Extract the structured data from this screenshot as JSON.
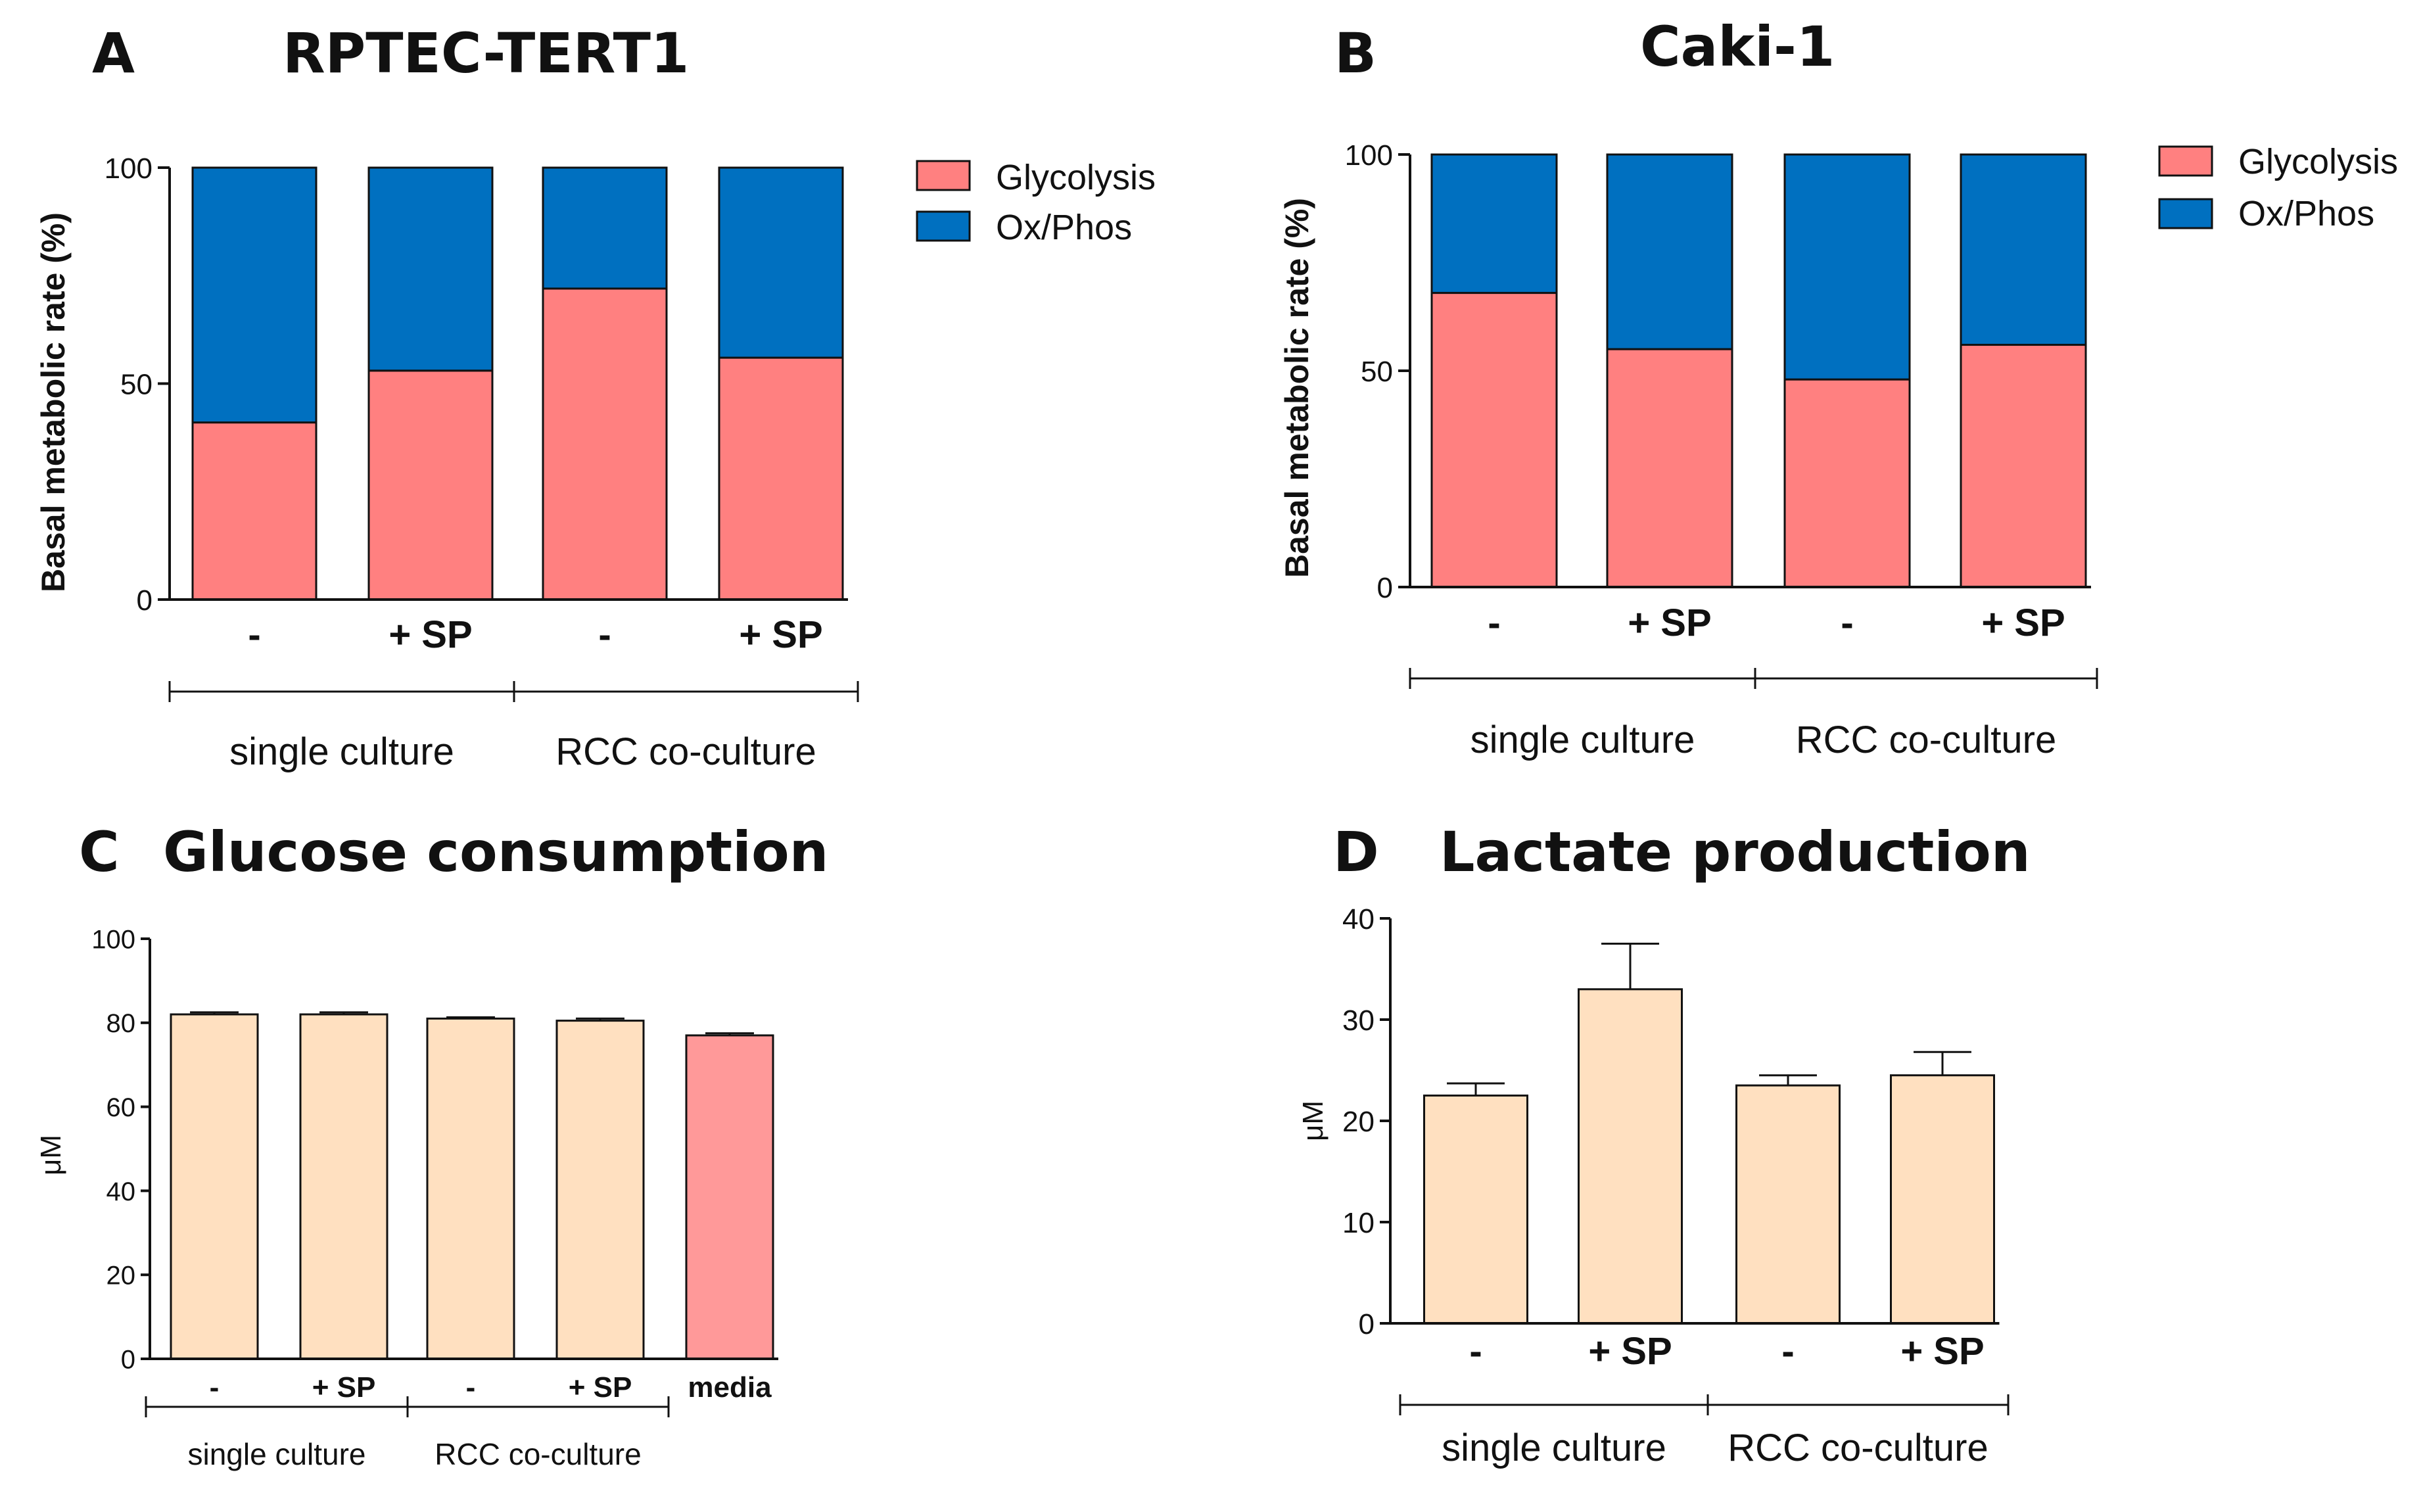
{
  "colors": {
    "glycolysis": "#FF8080",
    "oxphos": "#0070C0",
    "beige": "#FFE0C0",
    "media": "#FF9999",
    "axis": "#111111"
  },
  "chart_data": [
    {
      "panel": "A",
      "title": "RPTEC-TERT1",
      "type": "bar",
      "stacked": true,
      "categories": [
        "-",
        "+ SP",
        "-",
        "+ SP"
      ],
      "groups": [
        {
          "label": "single culture",
          "categories": [
            0,
            1
          ]
        },
        {
          "label": "RCC co-culture",
          "categories": [
            2,
            3
          ]
        }
      ],
      "series": [
        {
          "name": "Glycolysis",
          "color": "#FF8080",
          "values": [
            41,
            53,
            72,
            56
          ]
        },
        {
          "name": "Ox/Phos",
          "color": "#0070C0",
          "values": [
            59,
            47,
            28,
            44
          ]
        }
      ],
      "ylabel": "Basal metabolic rate (%)",
      "ylim": [
        0,
        100
      ],
      "yticks": [
        0,
        50,
        100
      ],
      "legend": "top-right"
    },
    {
      "panel": "B",
      "title": "Caki-1",
      "type": "bar",
      "stacked": true,
      "categories": [
        "-",
        "+ SP",
        "-",
        "+ SP"
      ],
      "groups": [
        {
          "label": "single culture",
          "categories": [
            0,
            1
          ]
        },
        {
          "label": "RCC co-culture",
          "categories": [
            2,
            3
          ]
        }
      ],
      "series": [
        {
          "name": "Glycolysis",
          "color": "#FF8080",
          "values": [
            68,
            55,
            48,
            56
          ]
        },
        {
          "name": "Ox/Phos",
          "color": "#0070C0",
          "values": [
            32,
            45,
            52,
            44
          ]
        }
      ],
      "ylabel": "Basal metabolic rate (%)",
      "ylim": [
        0,
        100
      ],
      "yticks": [
        0,
        50,
        100
      ],
      "legend": "top-right"
    },
    {
      "panel": "C",
      "title": "Glucose consumption",
      "type": "bar",
      "categories": [
        "-",
        "+ SP",
        "-",
        "+ SP",
        "media"
      ],
      "groups": [
        {
          "label": "single culture",
          "categories": [
            0,
            1
          ]
        },
        {
          "label": "RCC co-culture",
          "categories": [
            2,
            3
          ]
        }
      ],
      "values": [
        82,
        82,
        81,
        80.5,
        77
      ],
      "errors": [
        0.5,
        0.5,
        0.3,
        0.5,
        0.5
      ],
      "bar_colors": [
        "#FFE0C0",
        "#FFE0C0",
        "#FFE0C0",
        "#FFE0C0",
        "#FF9999"
      ],
      "ylabel": "μM",
      "ylim": [
        0,
        100
      ],
      "yticks": [
        0,
        20,
        40,
        60,
        80,
        100
      ]
    },
    {
      "panel": "D",
      "title": "Lactate production",
      "type": "bar",
      "categories": [
        "-",
        "+ SP",
        "-",
        "+ SP"
      ],
      "groups": [
        {
          "label": "single culture",
          "categories": [
            0,
            1
          ]
        },
        {
          "label": "RCC co-culture",
          "categories": [
            2,
            3
          ]
        }
      ],
      "values": [
        22.5,
        33,
        23.5,
        24.5
      ],
      "errors": [
        1.2,
        4.5,
        1.0,
        2.3
      ],
      "bar_colors": [
        "#FFE0C0",
        "#FFE0C0",
        "#FFE0C0",
        "#FFE0C0"
      ],
      "ylabel": "μM",
      "ylim": [
        0,
        40
      ],
      "yticks": [
        0,
        10,
        20,
        30,
        40
      ]
    }
  ]
}
